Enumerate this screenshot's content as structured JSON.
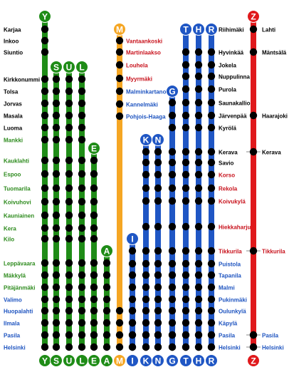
{
  "colors": {
    "green": "#1f8c17",
    "orange": "#f5a623",
    "blue": "#1f56c4",
    "red": "#e0191c",
    "dot": "#000000",
    "text_black": "#000000",
    "text_green": "#2e8b1e",
    "text_red": "#c8121c",
    "text_blue": "#1e54c0"
  },
  "green_lines": [
    "Y",
    "S",
    "U",
    "L",
    "E",
    "A"
  ],
  "orange_lines": [
    "M"
  ],
  "blue_lines": [
    "I",
    "K",
    "N",
    "G",
    "T",
    "H",
    "R"
  ],
  "red_lines": [
    "Z"
  ],
  "left_stations": [
    {
      "name": "Karjaa",
      "color": "black"
    },
    {
      "name": "Inkoo",
      "color": "black"
    },
    {
      "name": "Siuntio",
      "color": "black"
    },
    {
      "name": "Kirkkonummi",
      "color": "black"
    },
    {
      "name": "Tolsa",
      "color": "black"
    },
    {
      "name": "Jorvas",
      "color": "black"
    },
    {
      "name": "Masala",
      "color": "black"
    },
    {
      "name": "Luoma",
      "color": "black"
    },
    {
      "name": "Mankki",
      "color": "green"
    },
    {
      "name": "Kauklahti",
      "color": "green"
    },
    {
      "name": "Espoo",
      "color": "green"
    },
    {
      "name": "Tuomarila",
      "color": "green"
    },
    {
      "name": "Koivuhovi",
      "color": "green"
    },
    {
      "name": "Kauniainen",
      "color": "green"
    },
    {
      "name": "Kera",
      "color": "green"
    },
    {
      "name": "Kilo",
      "color": "green"
    },
    {
      "name": "Leppävaara",
      "color": "green"
    },
    {
      "name": "Mäkkylä",
      "color": "green"
    },
    {
      "name": "Pitäjänmäki",
      "color": "green"
    },
    {
      "name": "Valimo",
      "color": "blue"
    },
    {
      "name": "Huopalahti",
      "color": "blue"
    },
    {
      "name": "Ilmala",
      "color": "blue"
    },
    {
      "name": "Pasila",
      "color": "blue"
    },
    {
      "name": "Helsinki",
      "color": "blue"
    }
  ],
  "orange_stations": [
    {
      "name": "Vantaankoski",
      "color": "red"
    },
    {
      "name": "Martinlaakso",
      "color": "red"
    },
    {
      "name": "Louhela",
      "color": "red"
    },
    {
      "name": "Myyrmäki",
      "color": "red"
    },
    {
      "name": "Malminkartano",
      "color": "blue"
    },
    {
      "name": "Kannelmäki",
      "color": "blue"
    },
    {
      "name": "Pohjois-Haaga",
      "color": "blue"
    }
  ],
  "right_stations": [
    {
      "name": "Riihimäki",
      "color": "black"
    },
    {
      "name": "Hyvinkää",
      "color": "black"
    },
    {
      "name": "Jokela",
      "color": "black"
    },
    {
      "name": "Nuppulinna",
      "color": "black"
    },
    {
      "name": "Purola",
      "color": "black"
    },
    {
      "name": "Saunakallio",
      "color": "black"
    },
    {
      "name": "Järvenpää",
      "color": "black"
    },
    {
      "name": "Kyrölä",
      "color": "black"
    },
    {
      "name": "Kerava",
      "color": "black"
    },
    {
      "name": "Savio",
      "color": "black"
    },
    {
      "name": "Korso",
      "color": "red"
    },
    {
      "name": "Rekola",
      "color": "red"
    },
    {
      "name": "Koivukylä",
      "color": "red"
    },
    {
      "name": "Hiekkaharju",
      "color": "red"
    },
    {
      "name": "Tikkurila",
      "color": "red"
    },
    {
      "name": "Puistola",
      "color": "blue"
    },
    {
      "name": "Tapanila",
      "color": "blue"
    },
    {
      "name": "Malmi",
      "color": "blue"
    },
    {
      "name": "Pukinmäki",
      "color": "blue"
    },
    {
      "name": "Oulunkylä",
      "color": "blue"
    },
    {
      "name": "Käpylä",
      "color": "blue"
    },
    {
      "name": "Pasila",
      "color": "blue"
    },
    {
      "name": "Helsinki",
      "color": "blue"
    }
  ],
  "z_stations": [
    {
      "name": "Lahti",
      "color": "black"
    },
    {
      "name": "Mäntsälä",
      "color": "black"
    },
    {
      "name": "Haarajoki",
      "color": "black"
    },
    {
      "name": "Kerava",
      "color": "black"
    },
    {
      "name": "Tikkurila",
      "color": "red"
    },
    {
      "name": "Pasila",
      "color": "blue"
    },
    {
      "name": "Helsinki",
      "color": "blue"
    }
  ]
}
